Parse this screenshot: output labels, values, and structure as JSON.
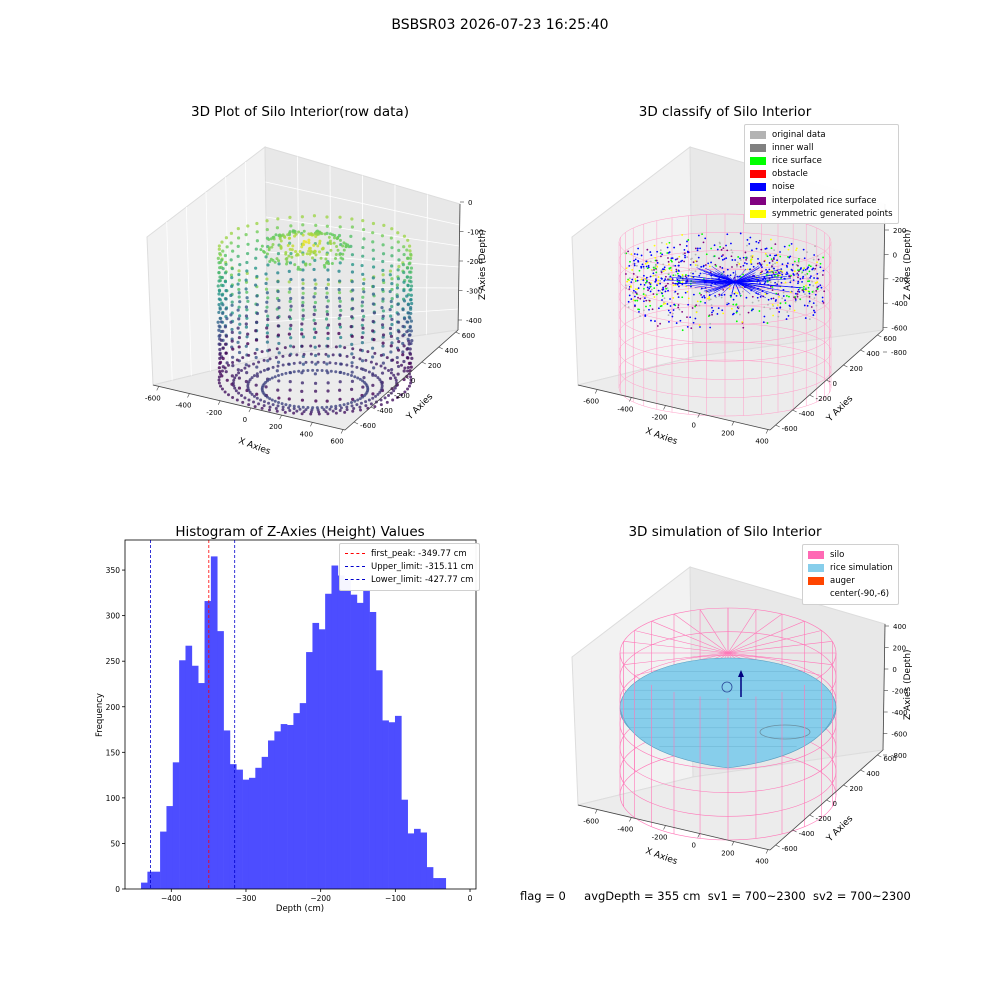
{
  "suptitle": "BSBSR03 2026-07-23 16:25:40",
  "status": {
    "flag": "flag = 0",
    "avg_depth": "avgDepth = 355 cm",
    "sv1": "sv1 = 700~2300",
    "sv2": "sv2 = 700~2300"
  },
  "chart_data": [
    {
      "type": "scatter",
      "title": "3D Plot of Silo Interior(row data)",
      "xlabel": "X Axies",
      "ylabel": "Y Axies",
      "zlabel": "Z Axies (Depth)",
      "x_ticks": [
        "-600",
        "-400",
        "-200",
        "0",
        "200",
        "400",
        "600"
      ],
      "y_ticks": [
        "-600",
        "-400",
        "-200",
        "0",
        "200",
        "400",
        "600"
      ],
      "z_ticks": [
        "0",
        "-100",
        "-200",
        "-300",
        "-400"
      ],
      "colormap": "viridis"
    },
    {
      "type": "scatter",
      "title": "3D classify of Silo Interior",
      "xlabel": "X Axies",
      "ylabel": "Y Axies",
      "zlabel": "Z Axies (Depth)",
      "x_ticks": [
        "-600",
        "-400",
        "-200",
        "0",
        "200",
        "400"
      ],
      "y_ticks": [
        "-600",
        "-400",
        "-200",
        "0",
        "200",
        "400",
        "600"
      ],
      "z_ticks": [
        "200",
        "0",
        "-200",
        "-400",
        "-600",
        "-800"
      ],
      "legend": [
        {
          "label": "original data",
          "color": "#b3b3b3"
        },
        {
          "label": "inner wall",
          "color": "#808080"
        },
        {
          "label": "rice surface",
          "color": "#00ff00"
        },
        {
          "label": "obstacle",
          "color": "#ff0000"
        },
        {
          "label": "noise",
          "color": "#0000ff"
        },
        {
          "label": "interpolated rice surface",
          "color": "#800080"
        },
        {
          "label": "symmetric generated points",
          "color": "#ffff00"
        }
      ],
      "legend_position": "top-right"
    },
    {
      "type": "bar",
      "title": "Histogram of Z-Axies (Height) Values",
      "xlabel": "Depth (cm)",
      "ylabel": "Frequency",
      "bar_color": "#4d4dff",
      "x_range": [
        -462,
        8
      ],
      "y_range": [
        0,
        383
      ],
      "x_ticks": [
        -400,
        -300,
        -200,
        -100,
        0
      ],
      "y_ticks": [
        0,
        50,
        100,
        150,
        200,
        250,
        300,
        350
      ],
      "bin_start": -440.5,
      "bin_width": 8.5,
      "values": [
        7,
        19,
        19,
        63,
        91,
        139,
        251,
        267,
        245,
        226,
        316,
        365,
        283,
        174,
        137,
        131,
        120,
        122,
        133,
        145,
        163,
        173,
        181,
        180,
        193,
        204,
        260,
        292,
        285,
        324,
        355,
        344,
        339,
        323,
        314,
        327,
        304,
        240,
        185,
        183,
        190,
        98,
        61,
        66,
        62,
        24,
        12,
        12
      ],
      "lines": [
        {
          "label": "first_peak: -349.77 cm",
          "x": -349.77,
          "color": "#ff0000"
        },
        {
          "label": "Upper_limit: -315.11 cm",
          "x": -315.11,
          "color": "#0000cc"
        },
        {
          "label": "Lower_limit: -427.77 cm",
          "x": -427.77,
          "color": "#0000cc"
        }
      ],
      "legend_position": "top-right"
    },
    {
      "type": "area",
      "title": "3D simulation of Silo Interior",
      "xlabel": "X Axies",
      "ylabel": "Y Axies",
      "zlabel": "Z Axies (Depth)",
      "x_ticks": [
        "-600",
        "-400",
        "-200",
        "0",
        "200",
        "400"
      ],
      "y_ticks": [
        "-600",
        "-400",
        "-200",
        "0",
        "200",
        "400",
        "600"
      ],
      "z_ticks": [
        "400",
        "200",
        "0",
        "-200",
        "-400",
        "-600",
        "-800"
      ],
      "legend": [
        {
          "label": "silo",
          "color": "#ff69b4"
        },
        {
          "label": "rice simulation",
          "color": "#87ceeb"
        },
        {
          "label": "auger",
          "color": "#ff4500"
        },
        {
          "label": "center(-90,-6)",
          "color": "#ffffff"
        }
      ],
      "legend_position": "top-right"
    }
  ]
}
